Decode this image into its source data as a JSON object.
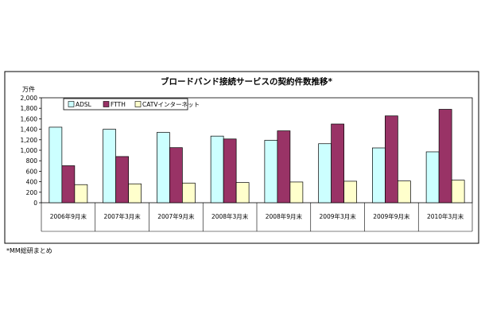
{
  "chart_data": {
    "type": "bar",
    "title": "ブロードバンド接続サービスの契約件数推移*",
    "unit_label": "万件",
    "categories": [
      "2006年9月末",
      "2007年3月末",
      "2007年9月末",
      "2008年3月末",
      "2008年9月末",
      "2009年3月末",
      "2009年9月末",
      "2010年3月末"
    ],
    "series": [
      {
        "name": "ADSL",
        "color": "#ccffff",
        "values": [
          1440,
          1400,
          1340,
          1270,
          1190,
          1125,
          1045,
          970
        ]
      },
      {
        "name": "FTTH",
        "color": "#993366",
        "values": [
          705,
          880,
          1050,
          1215,
          1370,
          1500,
          1655,
          1780
        ]
      },
      {
        "name": "CATVインターネット",
        "color": "#ffffcc",
        "values": [
          345,
          360,
          375,
          385,
          395,
          410,
          415,
          430
        ]
      }
    ],
    "yticks": [
      "0",
      "200",
      "400",
      "600",
      "800",
      "1,000",
      "1,200",
      "1,400",
      "1,600",
      "1,800",
      "2,000"
    ],
    "ylim": [
      0,
      2000
    ],
    "legend_position": "top-left",
    "grid": false
  },
  "note": "*MM総研まとめ"
}
